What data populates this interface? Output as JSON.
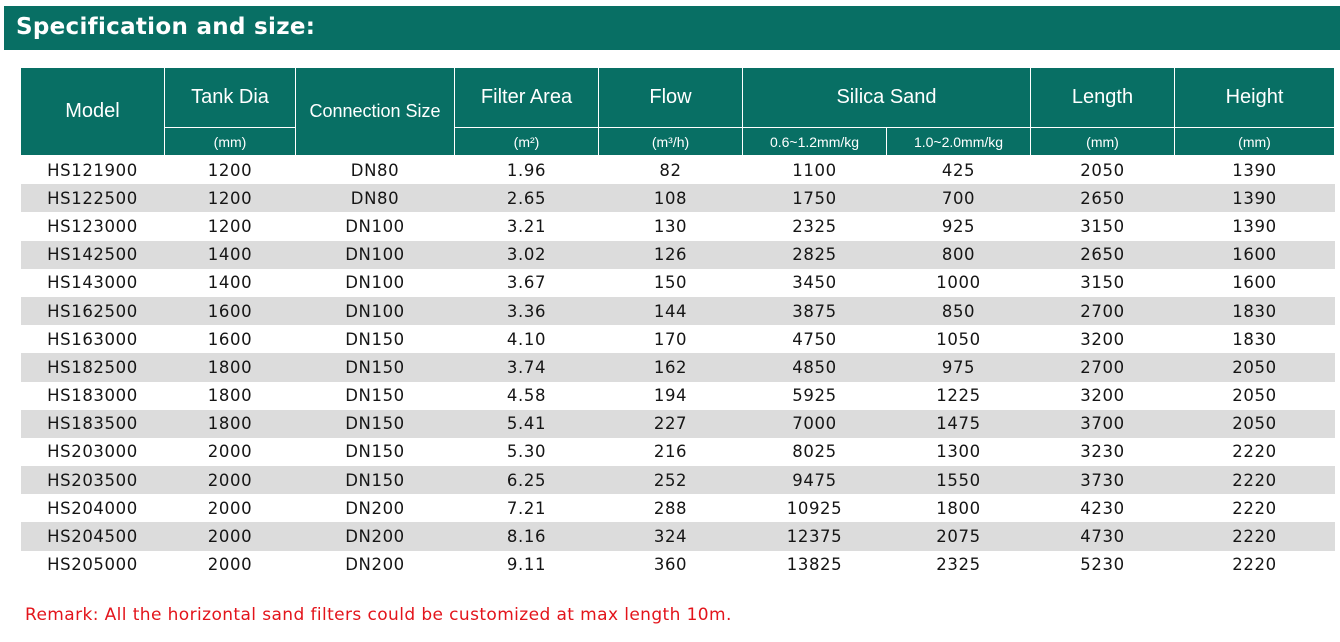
{
  "title": "Specification and size:",
  "headers": {
    "model": "Model",
    "tank_dia": "Tank Dia",
    "tank_dia_unit": "(mm)",
    "connection_size": "Connection Size",
    "filter_area": "Filter Area",
    "filter_area_unit": "(m²)",
    "flow": "Flow",
    "flow_unit": "(m³/h)",
    "silica_sand": "Silica Sand",
    "sand_a": "0.6~1.2mm/kg",
    "sand_b": "1.0~2.0mm/kg",
    "length": "Length",
    "length_unit": "(mm)",
    "height": "Height",
    "height_unit": "(mm)"
  },
  "rows": [
    [
      "HS121900",
      "1200",
      "DN80",
      "1.96",
      "82",
      "1100",
      "425",
      "2050",
      "1390"
    ],
    [
      "HS122500",
      "1200",
      "DN80",
      "2.65",
      "108",
      "1750",
      "700",
      "2650",
      "1390"
    ],
    [
      "HS123000",
      "1200",
      "DN100",
      "3.21",
      "130",
      "2325",
      "925",
      "3150",
      "1390"
    ],
    [
      "HS142500",
      "1400",
      "DN100",
      "3.02",
      "126",
      "2825",
      "800",
      "2650",
      "1600"
    ],
    [
      "HS143000",
      "1400",
      "DN100",
      "3.67",
      "150",
      "3450",
      "1000",
      "3150",
      "1600"
    ],
    [
      "HS162500",
      "1600",
      "DN100",
      "3.36",
      "144",
      "3875",
      "850",
      "2700",
      "1830"
    ],
    [
      "HS163000",
      "1600",
      "DN150",
      "4.10",
      "170",
      "4750",
      "1050",
      "3200",
      "1830"
    ],
    [
      "HS182500",
      "1800",
      "DN150",
      "3.74",
      "162",
      "4850",
      "975",
      "2700",
      "2050"
    ],
    [
      "HS183000",
      "1800",
      "DN150",
      "4.58",
      "194",
      "5925",
      "1225",
      "3200",
      "2050"
    ],
    [
      "HS183500",
      "1800",
      "DN150",
      "5.41",
      "227",
      "7000",
      "1475",
      "3700",
      "2050"
    ],
    [
      "HS203000",
      "2000",
      "DN150",
      "5.30",
      "216",
      "8025",
      "1300",
      "3230",
      "2220"
    ],
    [
      "HS203500",
      "2000",
      "DN150",
      "6.25",
      "252",
      "9475",
      "1550",
      "3730",
      "2220"
    ],
    [
      "HS204000",
      "2000",
      "DN200",
      "7.21",
      "288",
      "10925",
      "1800",
      "4230",
      "2220"
    ],
    [
      "HS204500",
      "2000",
      "DN200",
      "8.16",
      "324",
      "12375",
      "2075",
      "4730",
      "2220"
    ],
    [
      "HS205000",
      "2000",
      "DN200",
      "9.11",
      "360",
      "13825",
      "2325",
      "5230",
      "2220"
    ]
  ],
  "remark": "Remark: All the horizontal sand filters could be customized at max length 10m.",
  "colors": {
    "header_bg": "#086f64",
    "stripe": "#dcdcdc",
    "remark": "#e3141b"
  }
}
